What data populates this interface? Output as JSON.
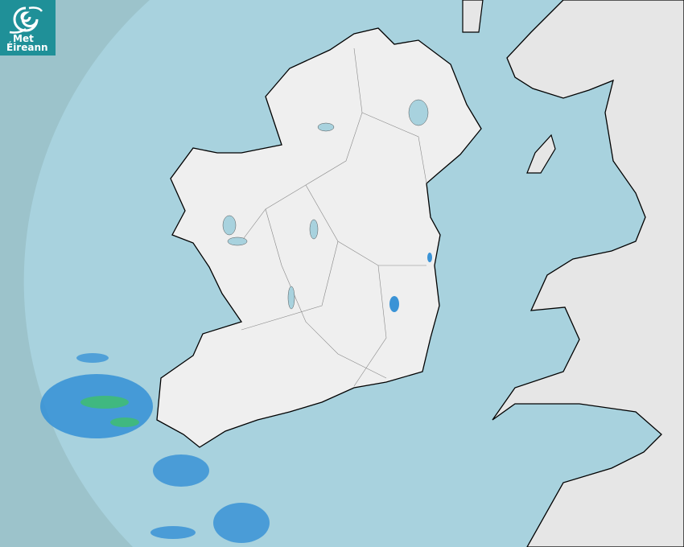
{
  "logo": {
    "line1": "Met",
    "line2": "Éireann"
  },
  "map": {
    "type": "rainfall-radar",
    "colors": {
      "out_of_range": "#9cc3cb",
      "sea": "#a8d2de",
      "land": "#efefef",
      "rain_light": "#3a93d6",
      "rain_moderate": "#3fbf6a",
      "logo_bg": "#1f9098"
    }
  }
}
